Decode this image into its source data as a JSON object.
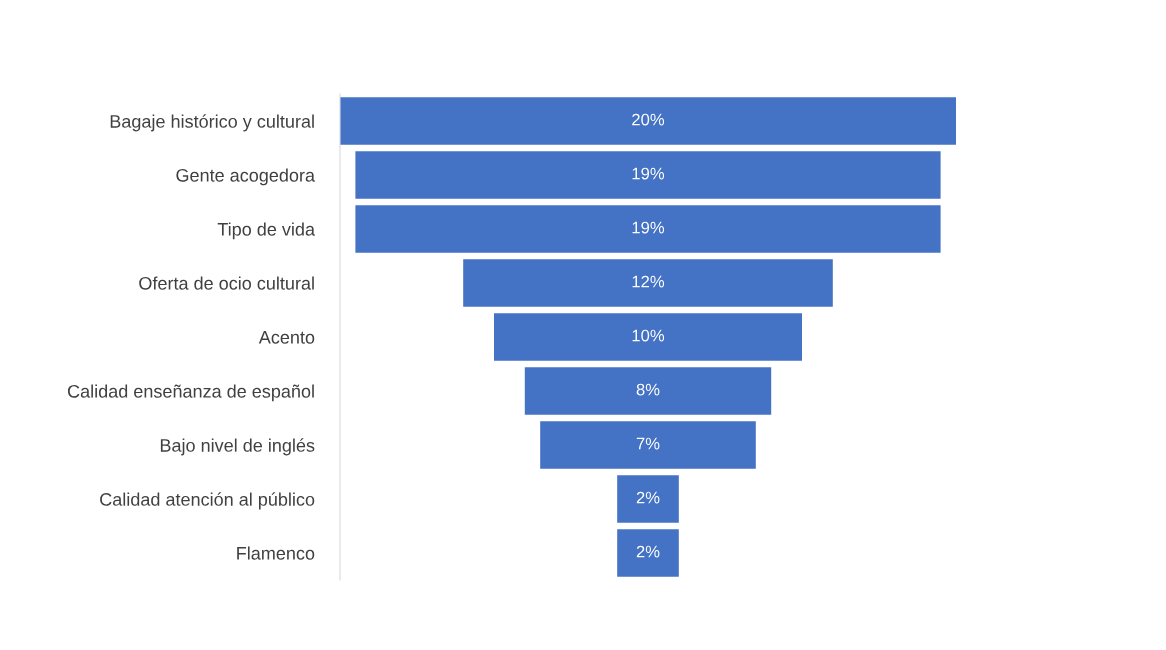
{
  "chart_data": {
    "type": "other",
    "categories": [
      "Bagaje histórico y cultural",
      "Gente acogedora",
      "Tipo de vida",
      "Oferta de ocio cultural",
      "Acento",
      "Calidad enseñanza de español",
      "Bajo nivel de inglés",
      "Calidad atención al público",
      "Flamenco"
    ],
    "values": [
      20,
      19,
      19,
      12,
      10,
      8,
      7,
      2,
      2
    ],
    "value_labels": [
      "20%",
      "19%",
      "19%",
      "12%",
      "10%",
      "8%",
      "7%",
      "2%",
      "2%"
    ],
    "color": "#4472c4"
  }
}
